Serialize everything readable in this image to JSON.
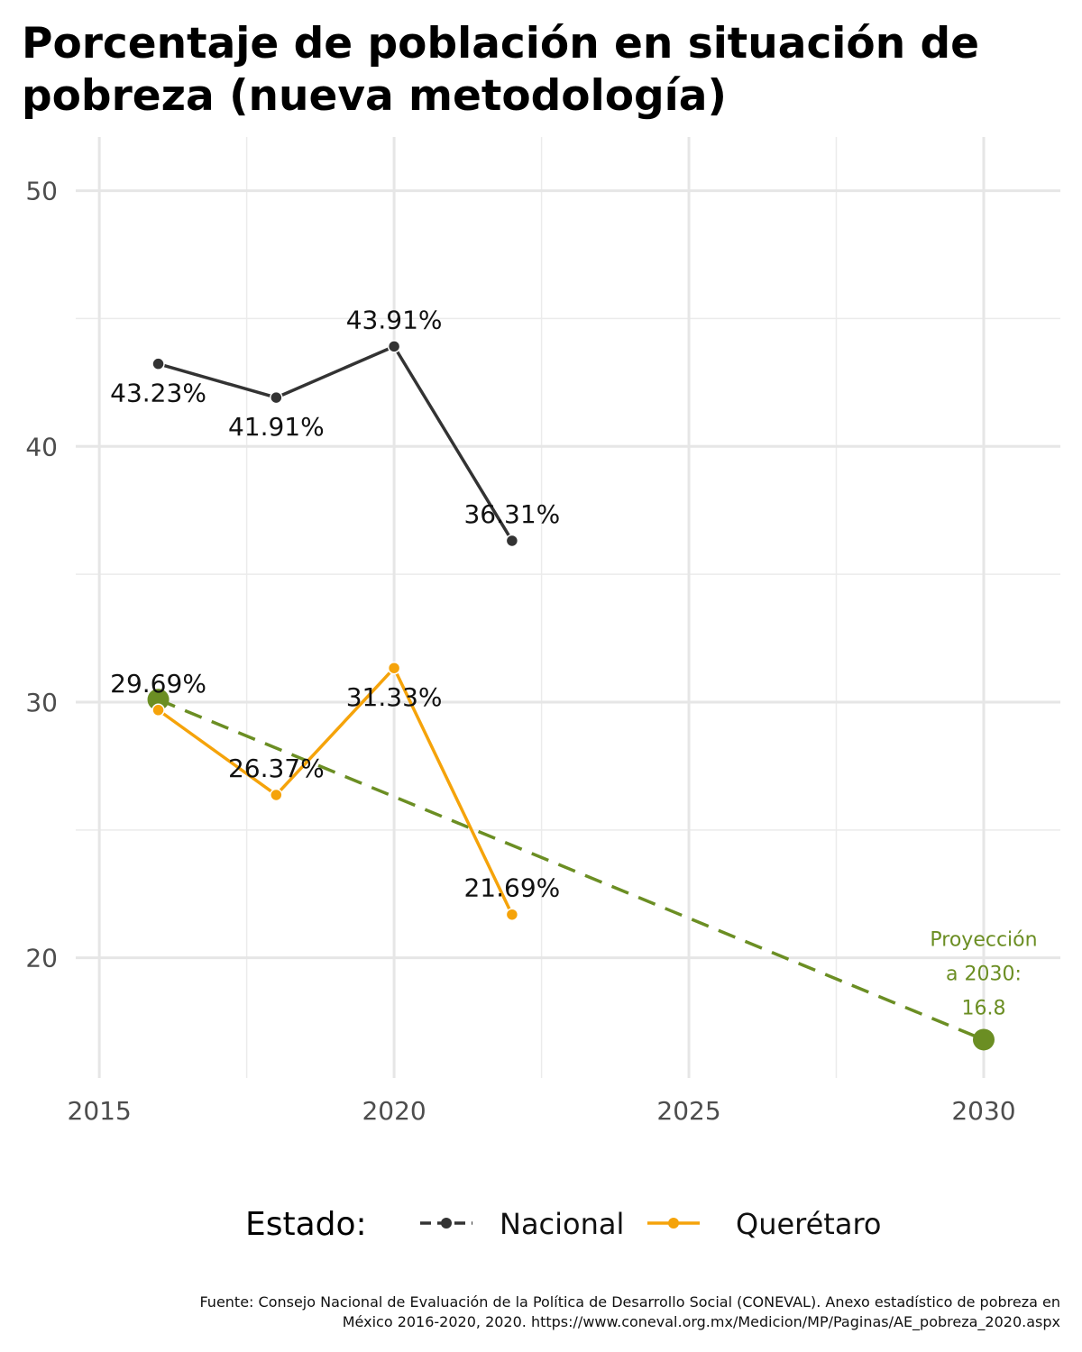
{
  "chart_data": {
    "type": "line",
    "title_lines": [
      "Porcentaje de población en situación de",
      "pobreza (nueva metodología)"
    ],
    "xlabel": "",
    "ylabel": "",
    "xlim": [
      2014.6,
      2031.3
    ],
    "ylim": [
      15.3,
      52.1
    ],
    "x_ticks": [
      2015,
      2020,
      2025,
      2030
    ],
    "y_ticks": [
      20,
      30,
      40,
      50
    ],
    "grid": true,
    "series": [
      {
        "name": "Nacional",
        "color": "#333333",
        "x": [
          2016,
          2018,
          2020,
          2022
        ],
        "values": [
          43.23,
          41.91,
          43.91,
          36.31
        ],
        "labels": [
          "43.23%",
          "41.91%",
          "43.91%",
          "36.31%"
        ],
        "label_pos": [
          "below",
          "below",
          "above",
          "above"
        ]
      },
      {
        "name": "Querétaro",
        "color": "#f5a30a",
        "x": [
          2016,
          2018,
          2020,
          2022
        ],
        "values": [
          29.69,
          26.37,
          31.33,
          21.69
        ],
        "labels": [
          "29.69%",
          "26.37%",
          "31.33%",
          "21.69%"
        ],
        "label_pos": [
          "above",
          "above",
          "below",
          "above"
        ]
      }
    ],
    "projection": {
      "color": "#6b8e23",
      "start": {
        "x": 2016,
        "y": 30.1
      },
      "end": {
        "x": 2030,
        "y": 16.8
      },
      "label_lines": [
        "Proyección",
        "a 2030:",
        "16.8"
      ]
    },
    "legend": {
      "title": "Estado:",
      "position": "bottom",
      "items": [
        "Nacional",
        "Querétaro"
      ]
    },
    "source_lines": [
      "Fuente: Consejo Nacional de Evaluación de la Política de Desarrollo Social (CONEVAL). Anexo estadístico de pobreza en",
      "México 2016-2020, 2020. https://www.coneval.org.mx/Medicion/MP/Paginas/AE_pobreza_2020.aspx"
    ]
  }
}
